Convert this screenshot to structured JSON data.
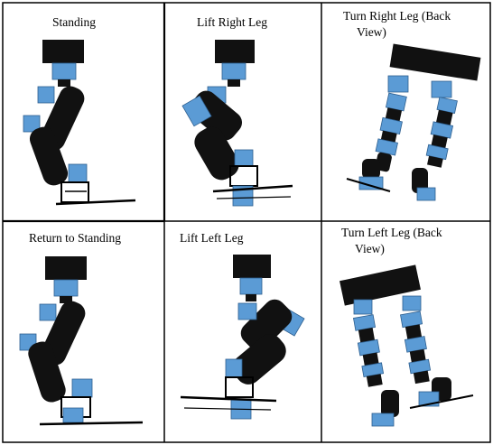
{
  "panels": [
    {
      "id": "standing",
      "lines": [
        "Standing"
      ]
    },
    {
      "id": "lift-right",
      "lines": [
        "Lift Right Leg"
      ]
    },
    {
      "id": "turn-right",
      "lines": [
        "Turn Right Leg (Back",
        "View)"
      ]
    },
    {
      "id": "return-standing",
      "lines": [
        "Return to Standing"
      ]
    },
    {
      "id": "lift-left",
      "lines": [
        "Lift Left Leg"
      ]
    },
    {
      "id": "turn-left",
      "lines": [
        "Turn Left Leg (Back",
        "View)"
      ]
    }
  ],
  "colors": {
    "servo": "#5b9bd5",
    "link": "#111111",
    "border": "#000000"
  }
}
